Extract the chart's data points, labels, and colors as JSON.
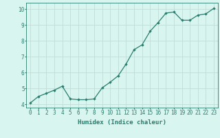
{
  "x": [
    0,
    1,
    2,
    3,
    4,
    5,
    6,
    7,
    8,
    9,
    10,
    11,
    12,
    13,
    14,
    15,
    16,
    17,
    18,
    19,
    20,
    21,
    22,
    23
  ],
  "y": [
    4.1,
    4.5,
    4.7,
    4.9,
    5.15,
    4.35,
    4.3,
    4.3,
    4.35,
    5.05,
    5.4,
    5.8,
    6.55,
    7.45,
    7.75,
    8.6,
    9.15,
    9.75,
    9.82,
    9.3,
    9.3,
    9.62,
    9.7,
    10.05
  ],
  "xlabel": "Humidex (Indice chaleur)",
  "xlim": [
    -0.5,
    23.5
  ],
  "ylim": [
    3.8,
    10.4
  ],
  "yticks": [
    4,
    5,
    6,
    7,
    8,
    9,
    10
  ],
  "xticks": [
    0,
    1,
    2,
    3,
    4,
    5,
    6,
    7,
    8,
    9,
    10,
    11,
    12,
    13,
    14,
    15,
    16,
    17,
    18,
    19,
    20,
    21,
    22,
    23
  ],
  "line_color": "#2a7d6e",
  "marker_color": "#2a7d6e",
  "bg_color": "#d8f5f0",
  "grid_color": "#c0ddd8",
  "axis_color": "#2a7d6e",
  "tick_color": "#2a7d6e",
  "label_color": "#2a7d6e",
  "font_size_tick": 5.5,
  "font_size_label": 6.5
}
